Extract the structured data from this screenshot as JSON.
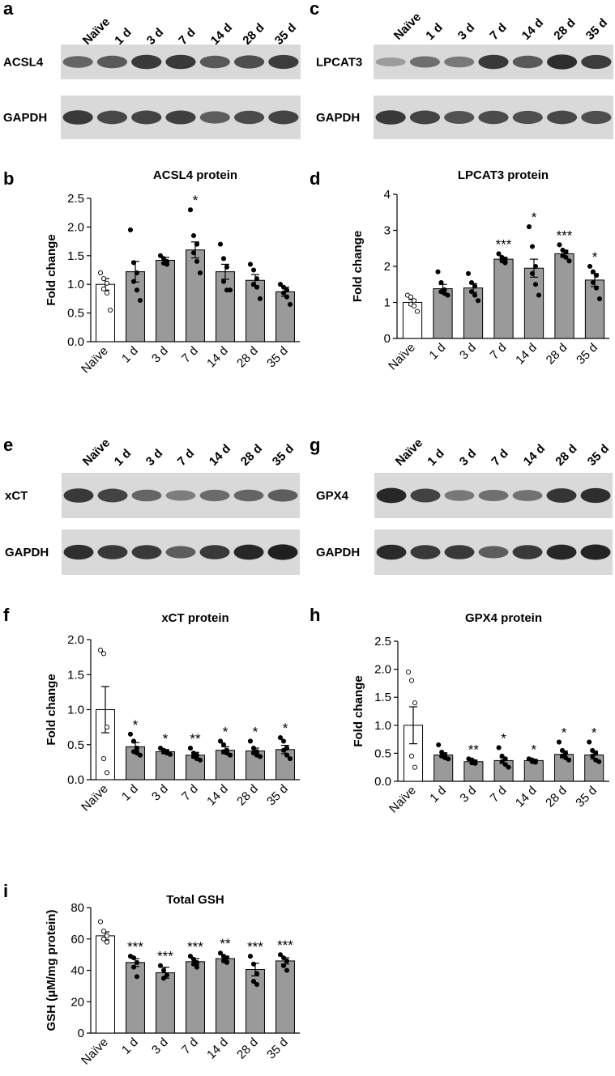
{
  "lanes": [
    "Naïve",
    "1 d",
    "3 d",
    "7 d",
    "14 d",
    "28 d",
    "35 d"
  ],
  "blots": [
    {
      "panel": "a",
      "target": "ACSL4",
      "control": "GAPDH",
      "target_intensity": [
        0.55,
        0.62,
        0.8,
        0.8,
        0.62,
        0.68,
        0.78
      ],
      "control_intensity": [
        0.8,
        0.72,
        0.74,
        0.76,
        0.6,
        0.7,
        0.74
      ]
    },
    {
      "panel": "c",
      "target": "LPCAT3",
      "control": "GAPDH",
      "target_intensity": [
        0.25,
        0.5,
        0.45,
        0.8,
        0.62,
        0.86,
        0.78
      ],
      "control_intensity": [
        0.8,
        0.74,
        0.66,
        0.7,
        0.68,
        0.72,
        0.68
      ]
    },
    {
      "panel": "e",
      "target": "xCT",
      "control": "GAPDH",
      "target_intensity": [
        0.8,
        0.74,
        0.55,
        0.42,
        0.52,
        0.55,
        0.6
      ],
      "control_intensity": [
        0.86,
        0.8,
        0.8,
        0.6,
        0.8,
        0.9,
        0.94
      ]
    },
    {
      "panel": "g",
      "target": "GPX4",
      "control": "GAPDH",
      "target_intensity": [
        0.9,
        0.75,
        0.45,
        0.5,
        0.48,
        0.82,
        0.86
      ],
      "control_intensity": [
        0.88,
        0.8,
        0.8,
        0.6,
        0.8,
        0.9,
        0.92
      ]
    }
  ],
  "chart_data": [
    {
      "panel": "b",
      "type": "bar",
      "title": "ACSL4 protein",
      "ylabel": "Fold change",
      "categories": [
        "Naïve",
        "1 d",
        "3 d",
        "7 d",
        "14 d",
        "28 d",
        "35 d"
      ],
      "values": [
        1.0,
        1.22,
        1.42,
        1.6,
        1.22,
        1.07,
        0.87
      ],
      "errors": [
        0.1,
        0.18,
        0.05,
        0.14,
        0.13,
        0.1,
        0.08
      ],
      "ylim": [
        0,
        2.5
      ],
      "yticks": [
        "0.0",
        "0.5",
        "1.0",
        "1.5",
        "2.0",
        "2.5"
      ],
      "significance": [
        "",
        "",
        "",
        "*",
        "",
        "",
        ""
      ],
      "points": [
        [
          1.2,
          1.1,
          1.02,
          0.92,
          0.85,
          0.55
        ],
        [
          1.95,
          1.38,
          1.2,
          1.05,
          0.9,
          0.72
        ],
        [
          1.5,
          1.45,
          1.4,
          1.37,
          1.35
        ],
        [
          2.3,
          1.85,
          1.7,
          1.55,
          1.4,
          1.2
        ],
        [
          1.7,
          1.45,
          1.3,
          1.05,
          0.9,
          0.9
        ],
        [
          1.35,
          1.25,
          1.1,
          1.0,
          0.95,
          0.75
        ],
        [
          1.0,
          0.95,
          0.9,
          0.85,
          0.78,
          0.65
        ]
      ]
    },
    {
      "panel": "d",
      "type": "bar",
      "title": "LPCAT3 protein",
      "ylabel": "Fold change",
      "categories": [
        "Naïve",
        "1 d",
        "3 d",
        "7 d",
        "14 d",
        "28 d",
        "35 d"
      ],
      "values": [
        1.0,
        1.38,
        1.4,
        2.2,
        1.95,
        2.35,
        1.62
      ],
      "errors": [
        0.08,
        0.12,
        0.12,
        0.05,
        0.25,
        0.1,
        0.18
      ],
      "ylim": [
        0,
        4
      ],
      "yticks": [
        "0",
        "1",
        "2",
        "3",
        "4"
      ],
      "significance": [
        "",
        "",
        "",
        "***",
        "*",
        "***",
        "*"
      ],
      "points": [
        [
          1.2,
          1.15,
          1.05,
          0.95,
          0.9,
          0.75
        ],
        [
          1.85,
          1.55,
          1.35,
          1.3,
          1.25,
          1.2
        ],
        [
          1.8,
          1.55,
          1.45,
          1.3,
          1.2,
          1.05
        ],
        [
          2.35,
          2.25,
          2.2,
          2.15,
          2.1
        ],
        [
          3.1,
          2.55,
          2.0,
          1.8,
          1.5,
          1.2
        ],
        [
          2.6,
          2.45,
          2.4,
          2.3,
          2.25,
          2.15
        ],
        [
          2.0,
          1.85,
          1.75,
          1.55,
          1.4,
          1.1
        ]
      ]
    },
    {
      "panel": "f",
      "type": "bar",
      "title": "xCT protein",
      "ylabel": "Fold change",
      "categories": [
        "Naïve",
        "1 d",
        "3 d",
        "7 d",
        "14 d",
        "28 d",
        "35 d"
      ],
      "values": [
        1.0,
        0.47,
        0.4,
        0.35,
        0.42,
        0.41,
        0.43
      ],
      "errors": [
        0.33,
        0.06,
        0.03,
        0.04,
        0.05,
        0.04,
        0.06
      ],
      "ylim": [
        0,
        2.0
      ],
      "yticks": [
        "0.0",
        "0.5",
        "1.0",
        "1.5",
        "2.0"
      ],
      "significance": [
        "",
        "*",
        "*",
        "**",
        "*",
        "*",
        "*"
      ],
      "points": [
        [
          1.85,
          1.8,
          0.75,
          0.3,
          0.1
        ],
        [
          0.65,
          0.55,
          0.45,
          0.4,
          0.38,
          0.35
        ],
        [
          0.45,
          0.42,
          0.4,
          0.4,
          0.38,
          0.36
        ],
        [
          0.45,
          0.38,
          0.35,
          0.33,
          0.3,
          0.28
        ],
        [
          0.55,
          0.5,
          0.42,
          0.4,
          0.38,
          0.35
        ],
        [
          0.55,
          0.45,
          0.4,
          0.38,
          0.35,
          0.33
        ],
        [
          0.6,
          0.55,
          0.45,
          0.42,
          0.35,
          0.3
        ]
      ]
    },
    {
      "panel": "h",
      "type": "bar",
      "title": "GPX4 protein",
      "ylabel": "Fold change",
      "categories": [
        "Naïve",
        "1 d",
        "3 d",
        "7 d",
        "14 d",
        "28 d",
        "35 d"
      ],
      "values": [
        1.0,
        0.47,
        0.35,
        0.37,
        0.37,
        0.48,
        0.47
      ],
      "errors": [
        0.33,
        0.04,
        0.03,
        0.05,
        0.02,
        0.06,
        0.07
      ],
      "ylim": [
        0,
        2.5
      ],
      "yticks": [
        "0.0",
        "0.5",
        "1.0",
        "1.5",
        "2.0",
        "2.5"
      ],
      "significance": [
        "",
        "",
        "**",
        "*",
        "*",
        "*",
        "*"
      ],
      "points": [
        [
          1.95,
          1.8,
          1.4,
          0.45,
          0.25
        ],
        [
          0.65,
          0.52,
          0.47,
          0.45,
          0.42,
          0.4
        ],
        [
          0.4,
          0.38,
          0.35,
          0.33,
          0.32
        ],
        [
          0.6,
          0.45,
          0.4,
          0.35,
          0.3,
          0.25
        ],
        [
          0.4,
          0.38,
          0.36,
          0.35,
          0.34
        ],
        [
          0.7,
          0.55,
          0.5,
          0.45,
          0.42,
          0.38
        ],
        [
          0.7,
          0.55,
          0.5,
          0.45,
          0.38,
          0.35
        ]
      ]
    },
    {
      "panel": "i",
      "type": "bar",
      "title": "Total GSH",
      "ylabel": "GSH (μM/mg protein)",
      "categories": [
        "Naïve",
        "1 d",
        "3 d",
        "7 d",
        "14 d",
        "28 d",
        "35 d"
      ],
      "values": [
        62,
        45,
        38.5,
        45.5,
        47.5,
        40.5,
        46
      ],
      "errors": [
        2.5,
        2.5,
        3.5,
        2,
        1.5,
        4,
        2
      ],
      "ylim": [
        0,
        80
      ],
      "yticks": [
        "0",
        "20",
        "40",
        "60",
        "80"
      ],
      "significance": [
        "",
        "***",
        "***",
        "***",
        "**",
        "***",
        "***"
      ],
      "points": [
        [
          71,
          65,
          62,
          60,
          58
        ],
        [
          49,
          48,
          45,
          42,
          36
        ],
        [
          43,
          40,
          37,
          35
        ],
        [
          49,
          47,
          45,
          44,
          42
        ],
        [
          51,
          49,
          48,
          46,
          45
        ],
        [
          49,
          44,
          38,
          33,
          31
        ],
        [
          50,
          48,
          46,
          43,
          40
        ]
      ]
    }
  ]
}
